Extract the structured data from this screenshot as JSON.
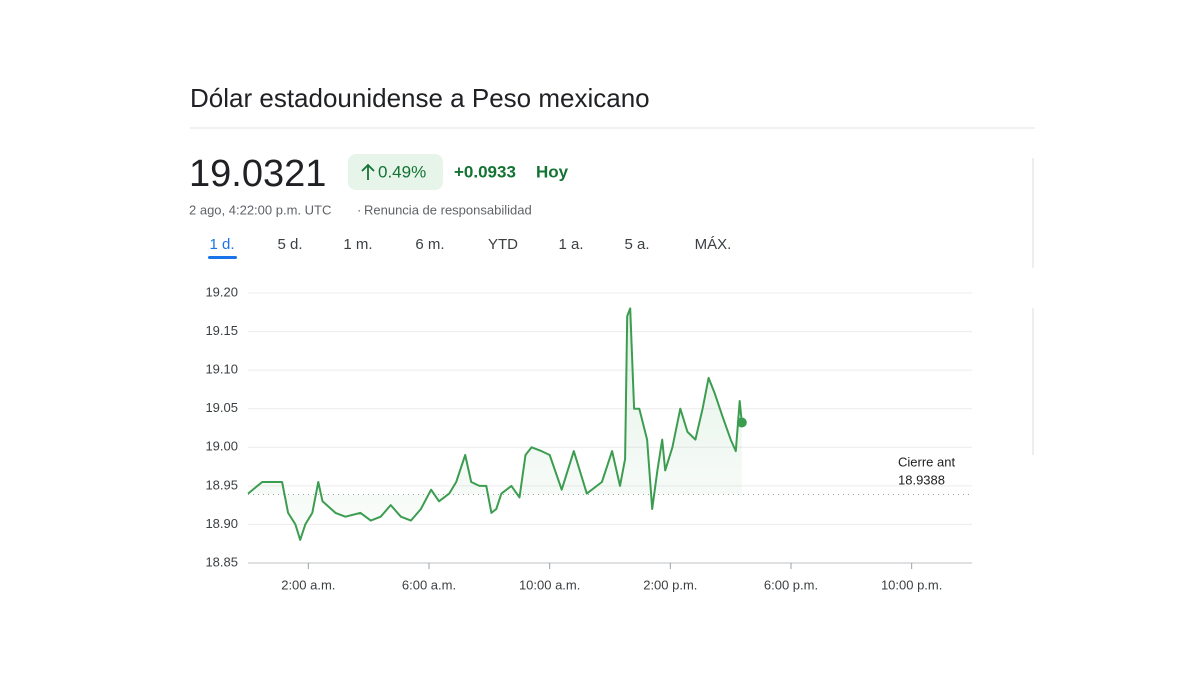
{
  "header": {
    "title": "Dólar estadounidense a Peso mexicano",
    "price": 19.0321,
    "change_pct": "0.49%",
    "change_abs": "+0.0933",
    "period": "Hoy",
    "timestamp": "2 ago, 4:22:00 p.m. UTC",
    "separator": "·",
    "disclaimer": "Renuncia de responsabilidad"
  },
  "tabs": [
    "1 d.",
    "5 d.",
    "1 m.",
    "6 m.",
    "YTD",
    "1 a.",
    "5 a.",
    "MÁX."
  ],
  "chart_data": {
    "type": "line",
    "color": "#3c9d50",
    "grid": true,
    "x": [
      0,
      0.47,
      0.9,
      1.13,
      1.33,
      1.57,
      1.73,
      1.9,
      2.13,
      2.33,
      2.47,
      2.9,
      3.23,
      3.73,
      4.07,
      4.4,
      4.73,
      5.07,
      5.4,
      5.73,
      6.07,
      6.33,
      6.67,
      6.9,
      7.2,
      7.4,
      7.67,
      7.9,
      8.07,
      8.23,
      8.4,
      8.73,
      9.0,
      9.2,
      9.4,
      9.73,
      10.0,
      10.4,
      10.8,
      11.23,
      11.73,
      12.07,
      12.33,
      12.5,
      12.57,
      12.67,
      12.8,
      12.97,
      13.23,
      13.4,
      13.57,
      13.73,
      13.83,
      14.07,
      14.33,
      14.57,
      14.83,
      15.07,
      15.27,
      15.47,
      15.73,
      16.0,
      16.17,
      16.3,
      16.37
    ],
    "values": [
      18.94,
      18.955,
      18.955,
      18.955,
      18.915,
      18.9,
      18.88,
      18.9,
      18.915,
      18.955,
      18.93,
      18.915,
      18.91,
      18.915,
      18.905,
      18.91,
      18.925,
      18.91,
      18.905,
      18.92,
      18.945,
      18.93,
      18.94,
      18.955,
      18.99,
      18.955,
      18.95,
      18.95,
      18.915,
      18.92,
      18.94,
      18.95,
      18.935,
      18.99,
      19.0,
      18.995,
      18.99,
      18.945,
      18.995,
      18.94,
      18.955,
      18.995,
      18.95,
      18.985,
      19.17,
      19.18,
      19.05,
      19.05,
      19.01,
      18.92,
      18.97,
      19.01,
      18.97,
      19.0,
      19.05,
      19.02,
      19.01,
      19.05,
      19.09,
      19.07,
      19.04,
      19.01,
      18.995,
      19.06,
      19.0321
    ],
    "xlim": [
      0,
      24
    ],
    "xticks": [
      {
        "value": 2,
        "label": "2:00 a.m."
      },
      {
        "value": 6,
        "label": "6:00 a.m."
      },
      {
        "value": 10,
        "label": "10:00 a.m."
      },
      {
        "value": 14,
        "label": "2:00 p.m."
      },
      {
        "value": 18,
        "label": "6:00 p.m."
      },
      {
        "value": 22,
        "label": "10:00 p.m."
      }
    ],
    "ylim": [
      18.85,
      19.2
    ],
    "yticks": [
      {
        "value": 18.85,
        "label": "18.85"
      },
      {
        "value": 18.9,
        "label": "18.90"
      },
      {
        "value": 18.95,
        "label": "18.95"
      },
      {
        "value": 19.0,
        "label": "19.00"
      },
      {
        "value": 19.05,
        "label": "19.05"
      },
      {
        "value": 19.1,
        "label": "19.10"
      },
      {
        "value": 19.15,
        "label": "19.15"
      },
      {
        "value": 19.2,
        "label": "19.20"
      }
    ],
    "previous_close": {
      "label": "Cierre ant",
      "value": 18.9388
    }
  }
}
